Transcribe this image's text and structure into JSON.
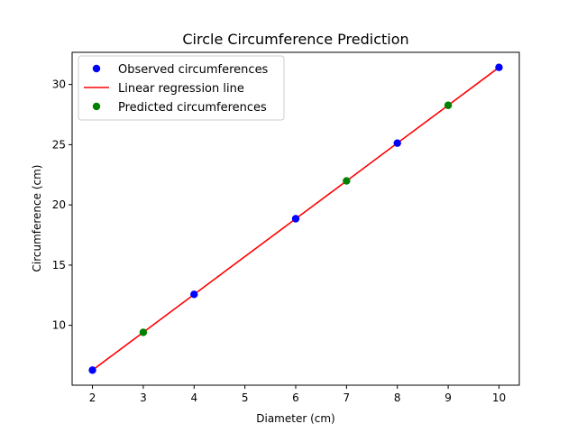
{
  "chart_data": {
    "type": "scatter",
    "title": "Circle Circumference Prediction",
    "xlabel": "Diameter (cm)",
    "ylabel": "Circumference (cm)",
    "xlim": [
      1.6,
      10.4
    ],
    "ylim": [
      5.03,
      32.67
    ],
    "xticks": [
      2,
      3,
      4,
      5,
      6,
      7,
      8,
      9,
      10
    ],
    "yticks": [
      10,
      15,
      20,
      25,
      30
    ],
    "grid": false,
    "legend_position": "top-left",
    "series": [
      {
        "name": "Observed circumferences",
        "kind": "scatter",
        "color": "#0000ff",
        "x": [
          2,
          4,
          6,
          8,
          10
        ],
        "y": [
          6.28,
          12.57,
          18.85,
          25.13,
          31.42
        ]
      },
      {
        "name": "Linear regression line",
        "kind": "line",
        "color": "#ff0000",
        "x": [
          2,
          3,
          4,
          6,
          7,
          8,
          9,
          10
        ],
        "y": [
          6.28,
          9.42,
          12.57,
          18.85,
          21.99,
          25.13,
          28.27,
          31.42
        ]
      },
      {
        "name": "Predicted circumferences",
        "kind": "scatter",
        "color": "#008000",
        "x": [
          3,
          7,
          9
        ],
        "y": [
          9.42,
          21.99,
          28.27
        ]
      }
    ]
  }
}
